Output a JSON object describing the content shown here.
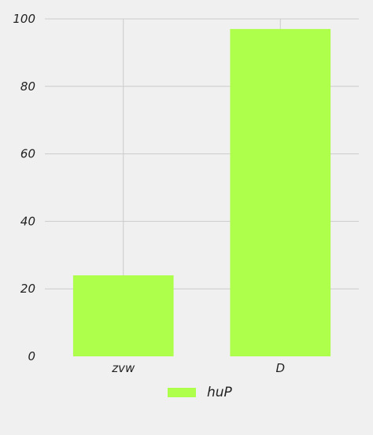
{
  "chart_data": {
    "type": "bar",
    "categories": [
      "zvw",
      "D"
    ],
    "series": [
      {
        "name": "huP",
        "values": [
          24,
          97
        ],
        "color": "#adff4c"
      }
    ],
    "ylim": [
      0,
      100
    ],
    "yticks": [
      0,
      20,
      40,
      60,
      80,
      100
    ],
    "title": "",
    "xlabel": "",
    "ylabel": "",
    "grid": true,
    "legend_position": "bottom-center"
  },
  "colors": {
    "background": "#f0f0f0",
    "grid": "#cbcbcb",
    "bar": "#adff4c",
    "text": "#222222"
  }
}
